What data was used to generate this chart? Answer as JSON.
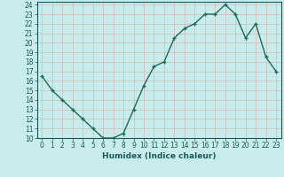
{
  "x": [
    0,
    1,
    2,
    3,
    4,
    5,
    6,
    7,
    8,
    9,
    10,
    11,
    12,
    13,
    14,
    15,
    16,
    17,
    18,
    19,
    20,
    21,
    22,
    23
  ],
  "y": [
    16.5,
    15.0,
    14.0,
    13.0,
    12.0,
    11.0,
    10.0,
    10.0,
    10.5,
    13.0,
    15.5,
    17.5,
    18.0,
    20.5,
    21.5,
    22.0,
    23.0,
    23.0,
    24.0,
    23.0,
    20.5,
    22.0,
    18.5,
    17.0
  ],
  "xlabel": "Humidex (Indice chaleur)",
  "xlim": [
    -0.5,
    23.5
  ],
  "ylim": [
    10,
    24.3
  ],
  "yticks": [
    10,
    11,
    12,
    13,
    14,
    15,
    16,
    17,
    18,
    19,
    20,
    21,
    22,
    23,
    24
  ],
  "xticks": [
    0,
    1,
    2,
    3,
    4,
    5,
    6,
    7,
    8,
    9,
    10,
    11,
    12,
    13,
    14,
    15,
    16,
    17,
    18,
    19,
    20,
    21,
    22,
    23
  ],
  "line_color": "#1a6b5a",
  "marker": "+",
  "bg_color": "#c8ecec",
  "grid_color": "#d4b8b8",
  "font_color": "#1a5a5a",
  "spine_color": "#1a5a5a"
}
